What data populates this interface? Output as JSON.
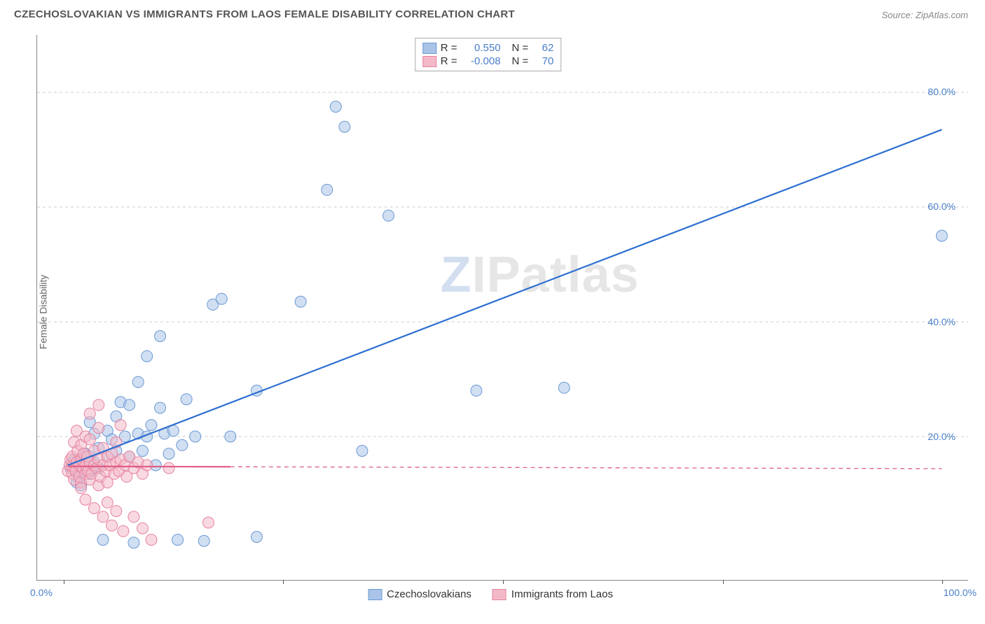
{
  "title": "CZECHOSLOVAKIAN VS IMMIGRANTS FROM LAOS FEMALE DISABILITY CORRELATION CHART",
  "source": "Source: ZipAtlas.com",
  "ylabel": "Female Disability",
  "watermark_letter": "Z",
  "watermark_rest": "IPatlas",
  "chart": {
    "type": "scatter",
    "background_color": "#ffffff",
    "grid_color": "#cccccc",
    "axis_color": "#888888",
    "tick_label_color": "#4a7fc9",
    "xlim": [
      -3,
      103
    ],
    "ylim": [
      -5,
      90
    ],
    "y_gridlines": [
      20,
      40,
      60,
      80
    ],
    "y_tick_labels": [
      "20.0%",
      "40.0%",
      "60.0%",
      "80.0%"
    ],
    "x_ticks": [
      0,
      25,
      50,
      75,
      100
    ],
    "x_tick_labels_left": "0.0%",
    "x_tick_labels_right": "100.0%",
    "marker_radius": 8,
    "marker_opacity": 0.55,
    "series": [
      {
        "name": "Czechoslovakians",
        "marker_fill": "#a9c4e8",
        "marker_stroke": "#6b99d4",
        "line_color": "#2d6fd0",
        "line_width": 2.2,
        "line_dash": "none",
        "R": "0.550",
        "N": "62",
        "trend": {
          "x1": 0.5,
          "y1": 15.0,
          "x2": 100,
          "y2": 73.5
        },
        "points": [
          [
            0.8,
            14.5
          ],
          [
            1.0,
            15.5
          ],
          [
            1.2,
            16.0
          ],
          [
            1.5,
            14.0
          ],
          [
            1.5,
            13.0
          ],
          [
            1.5,
            12.0
          ],
          [
            1.8,
            15.5
          ],
          [
            2.0,
            16.0
          ],
          [
            2.0,
            11.5
          ],
          [
            2.2,
            14.5
          ],
          [
            2.5,
            17.0
          ],
          [
            2.5,
            15.0
          ],
          [
            2.8,
            13.5
          ],
          [
            3.0,
            16.5
          ],
          [
            3.0,
            22.5
          ],
          [
            3.2,
            14.0
          ],
          [
            3.5,
            15.5
          ],
          [
            3.5,
            20.5
          ],
          [
            4.0,
            18.0
          ],
          [
            4.0,
            14.5
          ],
          [
            4.5,
            2.0
          ],
          [
            5.0,
            16.5
          ],
          [
            5.0,
            21.0
          ],
          [
            5.5,
            19.5
          ],
          [
            6.0,
            17.5
          ],
          [
            6.0,
            23.5
          ],
          [
            6.5,
            26.0
          ],
          [
            7.0,
            20.0
          ],
          [
            7.5,
            16.5
          ],
          [
            7.5,
            25.5
          ],
          [
            8.0,
            1.5
          ],
          [
            8.5,
            20.5
          ],
          [
            8.5,
            29.5
          ],
          [
            9.0,
            17.5
          ],
          [
            9.5,
            20.0
          ],
          [
            9.5,
            34.0
          ],
          [
            10.0,
            22.0
          ],
          [
            10.5,
            15.0
          ],
          [
            11.0,
            25.0
          ],
          [
            11.0,
            37.5
          ],
          [
            11.5,
            20.5
          ],
          [
            12.0,
            17.0
          ],
          [
            12.5,
            21.0
          ],
          [
            13.0,
            2.0
          ],
          [
            13.5,
            18.5
          ],
          [
            14.0,
            26.5
          ],
          [
            15.0,
            20.0
          ],
          [
            16.0,
            1.8
          ],
          [
            17.0,
            43.0
          ],
          [
            18.0,
            44.0
          ],
          [
            19.0,
            20.0
          ],
          [
            22.0,
            28.0
          ],
          [
            22.0,
            2.5
          ],
          [
            27.0,
            43.5
          ],
          [
            31.0,
            77.5
          ],
          [
            32.0,
            74.0
          ],
          [
            30.0,
            63.0
          ],
          [
            37.0,
            58.5
          ],
          [
            34.0,
            17.5
          ],
          [
            47.0,
            28.0
          ],
          [
            57.0,
            28.5
          ],
          [
            100.0,
            55.0
          ]
        ]
      },
      {
        "name": "Immigrants from Laos",
        "marker_fill": "#f4b9c8",
        "marker_stroke": "#e583a0",
        "line_color": "#e05e85",
        "line_width": 2.2,
        "line_dash": "6,5",
        "R": "-0.008",
        "N": "70",
        "trend": {
          "x1": 0.5,
          "y1": 14.8,
          "x2": 100,
          "y2": 14.4
        },
        "trend_solid_until": 19,
        "points": [
          [
            0.5,
            14.0
          ],
          [
            0.7,
            15.0
          ],
          [
            0.8,
            16.0
          ],
          [
            1.0,
            13.5
          ],
          [
            1.0,
            14.8
          ],
          [
            1.0,
            16.5
          ],
          [
            1.2,
            19.0
          ],
          [
            1.2,
            12.5
          ],
          [
            1.4,
            14.0
          ],
          [
            1.5,
            15.5
          ],
          [
            1.5,
            21.0
          ],
          [
            1.6,
            17.5
          ],
          [
            1.8,
            13.0
          ],
          [
            1.8,
            15.0
          ],
          [
            2.0,
            16.0
          ],
          [
            2.0,
            12.0
          ],
          [
            2.0,
            18.5
          ],
          [
            2.0,
            11.0
          ],
          [
            2.2,
            14.5
          ],
          [
            2.3,
            17.0
          ],
          [
            2.5,
            13.5
          ],
          [
            2.5,
            15.0
          ],
          [
            2.5,
            20.0
          ],
          [
            2.5,
            9.0
          ],
          [
            2.7,
            16.5
          ],
          [
            2.8,
            14.0
          ],
          [
            3.0,
            15.5
          ],
          [
            3.0,
            12.5
          ],
          [
            3.0,
            19.5
          ],
          [
            3.0,
            24.0
          ],
          [
            3.2,
            13.5
          ],
          [
            3.5,
            15.0
          ],
          [
            3.5,
            17.5
          ],
          [
            3.5,
            7.5
          ],
          [
            3.8,
            14.5
          ],
          [
            4.0,
            16.0
          ],
          [
            4.0,
            11.5
          ],
          [
            4.0,
            21.5
          ],
          [
            4.0,
            25.5
          ],
          [
            4.2,
            13.0
          ],
          [
            4.5,
            15.0
          ],
          [
            4.5,
            18.0
          ],
          [
            4.5,
            6.0
          ],
          [
            4.8,
            14.0
          ],
          [
            5.0,
            16.5
          ],
          [
            5.0,
            12.0
          ],
          [
            5.0,
            8.5
          ],
          [
            5.3,
            15.0
          ],
          [
            5.5,
            17.0
          ],
          [
            5.5,
            4.5
          ],
          [
            5.8,
            13.5
          ],
          [
            6.0,
            15.5
          ],
          [
            6.0,
            19.0
          ],
          [
            6.0,
            7.0
          ],
          [
            6.3,
            14.0
          ],
          [
            6.5,
            16.0
          ],
          [
            6.5,
            22.0
          ],
          [
            6.8,
            3.5
          ],
          [
            7.0,
            15.0
          ],
          [
            7.2,
            13.0
          ],
          [
            7.5,
            16.5
          ],
          [
            8.0,
            14.5
          ],
          [
            8.0,
            6.0
          ],
          [
            8.5,
            15.5
          ],
          [
            9.0,
            13.5
          ],
          [
            9.0,
            4.0
          ],
          [
            9.5,
            15.0
          ],
          [
            10.0,
            2.0
          ],
          [
            12.0,
            14.5
          ],
          [
            16.5,
            5.0
          ]
        ]
      }
    ]
  },
  "legend_top": {
    "rows": [
      {
        "sw_fill": "#a9c4e8",
        "sw_stroke": "#6b99d4",
        "R_lab": "R =",
        "R_val": "0.550",
        "N_lab": "N =",
        "N_val": "62"
      },
      {
        "sw_fill": "#f4b9c8",
        "sw_stroke": "#e583a0",
        "R_lab": "R =",
        "R_val": "-0.008",
        "N_lab": "N =",
        "N_val": "70"
      }
    ]
  },
  "legend_bottom": {
    "items": [
      {
        "sw_fill": "#a9c4e8",
        "sw_stroke": "#6b99d4",
        "label": "Czechoslovakians"
      },
      {
        "sw_fill": "#f4b9c8",
        "sw_stroke": "#e583a0",
        "label": "Immigrants from Laos"
      }
    ]
  }
}
